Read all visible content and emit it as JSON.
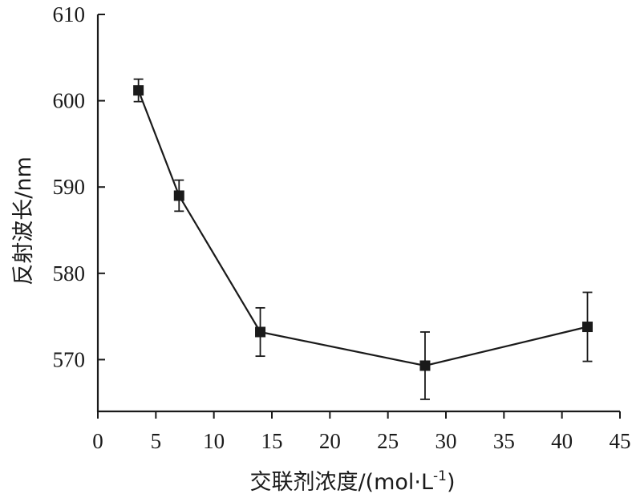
{
  "chart_data": {
    "type": "line",
    "title": "",
    "xlabel": "交联剂浓度/(mol·L-1)",
    "xlabel_main": "交联剂浓度/(mol·L",
    "xlabel_sup": "-1",
    "xlabel_close": ")",
    "ylabel": "反射波长/nm",
    "xlim": [
      0,
      45
    ],
    "ylim": [
      564,
      610
    ],
    "xticks": [
      0,
      5,
      10,
      15,
      20,
      25,
      30,
      35,
      40,
      45
    ],
    "yticks": [
      570,
      580,
      590,
      600,
      610
    ],
    "grid": false,
    "legend": "none",
    "marker": "square",
    "color": "#1a1a1a",
    "series": [
      {
        "x": [
          3.5,
          7.0,
          14.0,
          28.2,
          42.2
        ],
        "y": [
          601.2,
          589.0,
          573.2,
          569.3,
          573.8
        ],
        "error": [
          1.3,
          1.8,
          2.8,
          3.9,
          4.0
        ]
      }
    ]
  }
}
